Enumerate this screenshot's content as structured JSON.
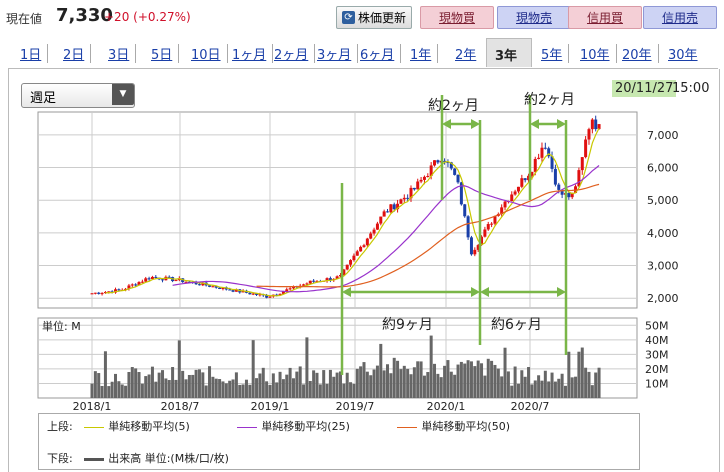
{
  "header": {
    "price_label": "現在値",
    "price": "7,330",
    "change": "+20 (+0.27%)",
    "refresh_label": "株価更新",
    "refresh_icon": "refresh-icon",
    "buttons": [
      "現物買",
      "現物売",
      "信用買",
      "信用売"
    ],
    "colors": {
      "buy": "#f4cfd6",
      "sell": "#cdd3f4",
      "up": "#d0102a"
    }
  },
  "tabs": [
    "1日",
    "2日",
    "3日",
    "5日",
    "10日",
    "1ヶ月",
    "2ヶ月",
    "3ヶ月",
    "6ヶ月",
    "1年",
    "2年",
    "3年",
    "5年",
    "10年",
    "20年",
    "30年"
  ],
  "active_tab": "3年",
  "period_select": "週足",
  "timestamp": {
    "date": "20/11/27",
    "time": "15:00"
  },
  "chart": {
    "y_ticks": [
      "7,000",
      "6,000",
      "5,000",
      "4,000",
      "3,000",
      "2,000"
    ],
    "vol_unit": "単位: M",
    "vol_ticks": [
      "50M",
      "40M",
      "30M",
      "20M",
      "10M"
    ],
    "x_ticks": [
      "2018/1",
      "2018/7",
      "2019/1",
      "2019/7",
      "2020/1",
      "2020/7"
    ],
    "annotations": {
      "top1": "約2ヶ月",
      "top2": "約2ヶ月",
      "bottom1": "約9ヶ月",
      "bottom2": "約6ヶ月"
    },
    "colors": {
      "ma5": "#c8c800",
      "ma25": "#9933cc",
      "ma50": "#e06020",
      "candle_up": "#e01010",
      "candle_down": "#1a3fa8",
      "volume": "#666666",
      "annotation": "#7ab648"
    }
  },
  "chart_data": {
    "type": "candlestick",
    "frequency": "weekly",
    "anchors": [
      [
        "2018/1",
        2150
      ],
      [
        "2018/3",
        2250
      ],
      [
        "2018/5",
        2650
      ],
      [
        "2018/7",
        2550
      ],
      [
        "2018/10",
        2300
      ],
      [
        "2019/1",
        2050
      ],
      [
        "2019/4",
        2500
      ],
      [
        "2019/6",
        2650
      ],
      [
        "2019/9",
        4600
      ],
      [
        "2019/11",
        5300
      ],
      [
        "2020/1",
        6400
      ],
      [
        "2020/2",
        5600
      ],
      [
        "2020/3",
        3400
      ],
      [
        "2020/5",
        4800
      ],
      [
        "2020/7",
        5900
      ],
      [
        "2020/8",
        6800
      ],
      [
        "2020/9",
        5200
      ],
      [
        "2020/10",
        5100
      ],
      [
        "2020/11",
        7330
      ]
    ],
    "y_range": [
      1700,
      7700
    ],
    "volume_range_m": [
      0,
      55
    ],
    "series": [
      {
        "name": "単純移動平均(5)"
      },
      {
        "name": "単純移動平均(25)"
      },
      {
        "name": "単純移動平均(50)"
      }
    ]
  },
  "legend": {
    "upper_label": "上段:",
    "lower_label": "下段:",
    "ma5": "単純移動平均(5)",
    "ma25": "単純移動平均(25)",
    "ma50": "単純移動平均(50)",
    "volume": "出来高 単位:(M株/口/枚)"
  }
}
